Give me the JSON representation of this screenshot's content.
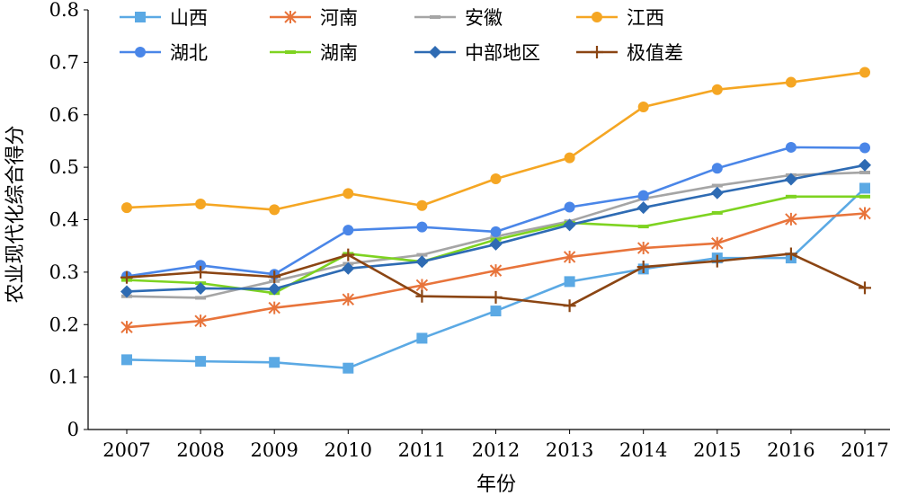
{
  "chart_data": {
    "type": "line",
    "title": "",
    "xlabel": "年份",
    "ylabel": "农业现代化综合得分",
    "ylim": [
      0,
      0.8
    ],
    "yticks": [
      0,
      0.1,
      0.2,
      0.3,
      0.4,
      0.5,
      0.6,
      0.7,
      0.8
    ],
    "ytick_labels": [
      "0",
      "0.1",
      "0.2",
      "0.3",
      "0.4",
      "0.5",
      "0.6",
      "0.7",
      "0.8"
    ],
    "grid": false,
    "legend_position": "top",
    "categories": [
      "2007",
      "2008",
      "2009",
      "2010",
      "2011",
      "2012",
      "2013",
      "2014",
      "2015",
      "2016",
      "2017"
    ],
    "series": [
      {
        "name": "山西",
        "color": "#5BA9E4",
        "marker": "square",
        "values": [
          0.133,
          0.13,
          0.128,
          0.117,
          0.174,
          0.226,
          0.282,
          0.306,
          0.327,
          0.327,
          0.46
        ]
      },
      {
        "name": "河南",
        "color": "#E8743B",
        "marker": "star",
        "values": [
          0.195,
          0.207,
          0.232,
          0.248,
          0.275,
          0.303,
          0.329,
          0.346,
          0.355,
          0.401,
          0.412
        ]
      },
      {
        "name": "安徽",
        "color": "#A5A5A5",
        "marker": "dash",
        "values": [
          0.254,
          0.251,
          0.283,
          0.316,
          0.333,
          0.368,
          0.397,
          0.44,
          0.465,
          0.485,
          0.49
        ]
      },
      {
        "name": "江西",
        "color": "#F5A623",
        "marker": "circle",
        "values": [
          0.423,
          0.43,
          0.419,
          0.45,
          0.427,
          0.478,
          0.518,
          0.615,
          0.648,
          0.662,
          0.681
        ]
      },
      {
        "name": "湖北",
        "color": "#4A86E8",
        "marker": "circle",
        "values": [
          0.292,
          0.313,
          0.296,
          0.38,
          0.386,
          0.377,
          0.424,
          0.446,
          0.498,
          0.538,
          0.537
        ]
      },
      {
        "name": "湖南",
        "color": "#7ED321",
        "marker": "dash",
        "values": [
          0.285,
          0.279,
          0.26,
          0.335,
          0.32,
          0.362,
          0.394,
          0.387,
          0.413,
          0.444,
          0.444
        ]
      },
      {
        "name": "中部地区",
        "color": "#2E6BB3",
        "marker": "diamond",
        "values": [
          0.263,
          0.269,
          0.268,
          0.307,
          0.32,
          0.353,
          0.39,
          0.423,
          0.451,
          0.477,
          0.504
        ]
      },
      {
        "name": "极值差",
        "color": "#8B4513",
        "marker": "plus",
        "values": [
          0.29,
          0.3,
          0.291,
          0.333,
          0.254,
          0.252,
          0.236,
          0.31,
          0.321,
          0.335,
          0.27
        ]
      }
    ]
  }
}
